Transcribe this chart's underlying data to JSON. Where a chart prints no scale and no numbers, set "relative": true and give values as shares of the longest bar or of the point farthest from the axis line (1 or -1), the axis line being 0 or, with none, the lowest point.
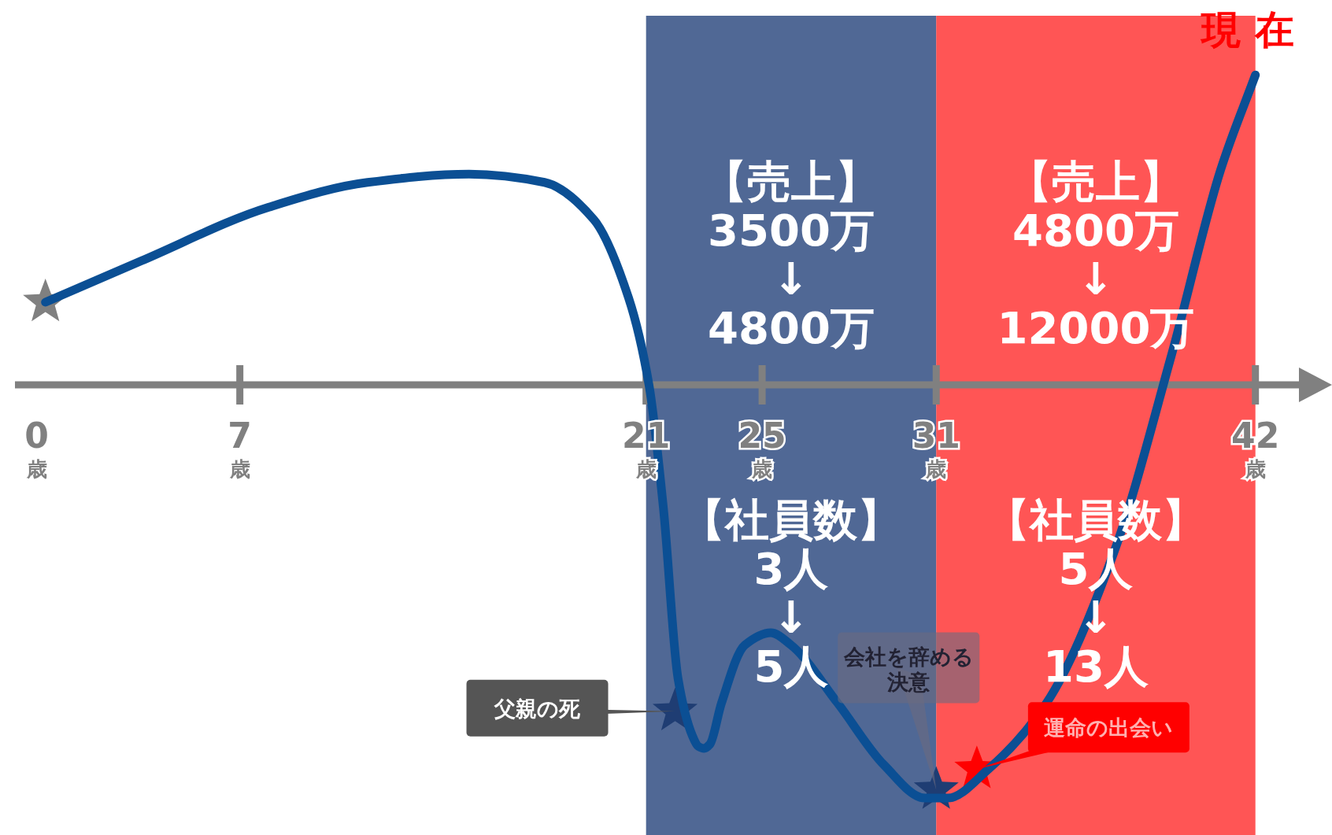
{
  "chart_data": {
    "type": "line",
    "relative": true,
    "xlim": [
      -0.75,
      43.5
    ],
    "xticks": [
      {
        "value": 0,
        "label": "0歳"
      },
      {
        "value": 7,
        "label": "7歳"
      },
      {
        "value": 21,
        "label": "21歳"
      },
      {
        "value": 25,
        "label": "25歳"
      },
      {
        "value": 31,
        "label": "31歳"
      },
      {
        "value": 42,
        "label": "42歳"
      }
    ],
    "series": [
      {
        "color": "#0b4f94",
        "x": [
          0.3,
          3.6,
          8.0,
          11.4,
          14.9,
          17.5,
          19.2,
          20.4,
          21.1,
          21.6,
          22.1,
          22.6,
          22.8,
          23.0,
          23.2,
          23.6,
          24.4,
          25.3,
          26.0,
          27.6,
          29.2,
          30.6,
          31.4,
          32.8,
          34.8,
          37.1,
          39.1,
          40.8,
          42.0
        ],
        "values": [
          0.2,
          0.3,
          0.43,
          0.49,
          0.51,
          0.49,
          0.4,
          0.21,
          0,
          -0.3,
          -0.71,
          -0.85,
          -0.875,
          -0.88,
          -0.87,
          -0.77,
          -0.63,
          -0.6,
          -0.63,
          -0.77,
          -0.92,
          -1,
          -1,
          -0.93,
          -0.77,
          -0.41,
          0.07,
          0.52,
          0.75
        ]
      },
      {
        "type": "scatter",
        "marker": "star",
        "x": [
          0.3,
          22.0,
          31.0,
          32.4
        ],
        "values": [
          0.2,
          -0.79,
          -0.98,
          -0.93
        ],
        "colors": [
          "#808080",
          "#1f3d73",
          "#1f3d73",
          "#ff0000"
        ]
      }
    ],
    "bands": [
      {
        "axis": "x",
        "from": 21,
        "to": 31,
        "color": "#24427a",
        "label": "【売上】\n3500万\n↓\n4800万"
      },
      {
        "axis": "x",
        "from": 31,
        "to": 42,
        "color": "#ff2a2a",
        "label": "【売上】\n4800万\n↓\n12000万"
      }
    ],
    "annotations": [
      {
        "text": "父親の死",
        "x": 22.0,
        "y": -0.79
      },
      {
        "text": "会社を辞める決意",
        "x": 31.0,
        "y": -0.98
      },
      {
        "text": "運命の出会い",
        "x": 32.4,
        "y": -0.93
      },
      "【社員数】\n3人\n↓\n5人",
      "【社員数】\n5人\n↓\n13人",
      "現 在"
    ]
  }
}
